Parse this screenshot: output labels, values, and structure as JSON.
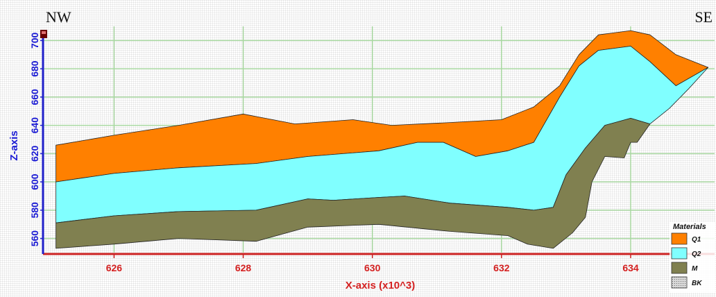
{
  "corner_labels": {
    "left": "NW",
    "right": "SE"
  },
  "chart_data": {
    "type": "area",
    "title": "",
    "xlabel": "X-axis (x10^3)",
    "ylabel": "Z-axis",
    "xlim": [
      624.9,
      635.3
    ],
    "ylim": [
      550,
      710
    ],
    "xticks": [
      626,
      628,
      630,
      632,
      634
    ],
    "yticks": [
      560,
      580,
      600,
      620,
      640,
      660,
      680,
      700
    ],
    "grid": true,
    "grid_color": "#a8d8a0",
    "legend_title": "Materials",
    "legend_position": "bottom-right",
    "series": [
      {
        "name": "Q1",
        "color": "#ff8000",
        "polygon": [
          [
            625.1,
            626
          ],
          [
            626,
            633
          ],
          [
            627,
            640
          ],
          [
            628,
            648
          ],
          [
            628.8,
            641
          ],
          [
            629.7,
            644
          ],
          [
            630.3,
            640
          ],
          [
            631.2,
            642
          ],
          [
            632,
            644
          ],
          [
            632.5,
            653
          ],
          [
            632.9,
            668
          ],
          [
            633.2,
            690
          ],
          [
            633.5,
            704
          ],
          [
            634,
            707
          ],
          [
            634.3,
            704
          ],
          [
            634.7,
            690
          ],
          [
            635.2,
            681
          ],
          [
            634.7,
            668
          ],
          [
            634.3,
            685
          ],
          [
            634,
            696
          ],
          [
            633.5,
            693
          ],
          [
            633.2,
            682
          ],
          [
            632.9,
            660
          ],
          [
            632.5,
            628
          ],
          [
            632.1,
            622
          ],
          [
            631.6,
            618
          ],
          [
            631.1,
            628
          ],
          [
            630.7,
            628
          ],
          [
            630.1,
            622
          ],
          [
            629,
            618
          ],
          [
            628.2,
            613
          ],
          [
            627,
            610
          ],
          [
            626,
            606
          ],
          [
            625.1,
            600
          ]
        ]
      },
      {
        "name": "Q2",
        "color": "#80ffff",
        "polygon": [
          [
            625.1,
            600
          ],
          [
            626,
            606
          ],
          [
            627,
            610
          ],
          [
            628.2,
            613
          ],
          [
            629,
            618
          ],
          [
            630.1,
            622
          ],
          [
            630.7,
            628
          ],
          [
            631.1,
            628
          ],
          [
            631.6,
            618
          ],
          [
            632.1,
            622
          ],
          [
            632.5,
            628
          ],
          [
            632.9,
            660
          ],
          [
            633.2,
            682
          ],
          [
            633.5,
            693
          ],
          [
            634,
            696
          ],
          [
            634.3,
            685
          ],
          [
            634.7,
            668
          ],
          [
            635.2,
            681
          ],
          [
            634.9,
            666
          ],
          [
            634.6,
            652
          ],
          [
            634.3,
            641
          ],
          [
            634,
            645
          ],
          [
            633.6,
            640
          ],
          [
            633.3,
            624
          ],
          [
            633,
            605
          ],
          [
            632.8,
            582
          ],
          [
            632.5,
            580
          ],
          [
            632.1,
            582
          ],
          [
            631.2,
            585
          ],
          [
            630.5,
            590
          ],
          [
            630.1,
            589
          ],
          [
            629.4,
            587
          ],
          [
            629,
            588
          ],
          [
            628.2,
            580
          ],
          [
            627,
            579
          ],
          [
            626,
            576
          ],
          [
            625.1,
            571
          ]
        ]
      },
      {
        "name": "M",
        "color": "#808050",
        "polygon": [
          [
            625.1,
            571
          ],
          [
            626,
            576
          ],
          [
            627,
            579
          ],
          [
            628.2,
            580
          ],
          [
            629,
            588
          ],
          [
            629.4,
            587
          ],
          [
            630.1,
            589
          ],
          [
            630.5,
            590
          ],
          [
            631.2,
            585
          ],
          [
            632.1,
            582
          ],
          [
            632.5,
            580
          ],
          [
            632.8,
            582
          ],
          [
            633,
            605
          ],
          [
            633.3,
            624
          ],
          [
            633.6,
            640
          ],
          [
            634,
            645
          ],
          [
            634.3,
            641
          ],
          [
            634.1,
            628
          ],
          [
            634,
            628
          ],
          [
            633.9,
            617
          ],
          [
            633.6,
            618
          ],
          [
            633.4,
            600
          ],
          [
            633.3,
            575
          ],
          [
            633.1,
            564
          ],
          [
            632.8,
            553
          ],
          [
            632.4,
            556
          ],
          [
            632.1,
            562
          ],
          [
            631.2,
            565
          ],
          [
            630.1,
            570
          ],
          [
            629,
            568
          ],
          [
            628.2,
            558
          ],
          [
            627,
            560
          ],
          [
            626,
            556
          ],
          [
            625.1,
            553
          ]
        ]
      }
    ],
    "legend_extra": [
      {
        "name": "BK",
        "pattern": "dotted-gray"
      }
    ]
  }
}
